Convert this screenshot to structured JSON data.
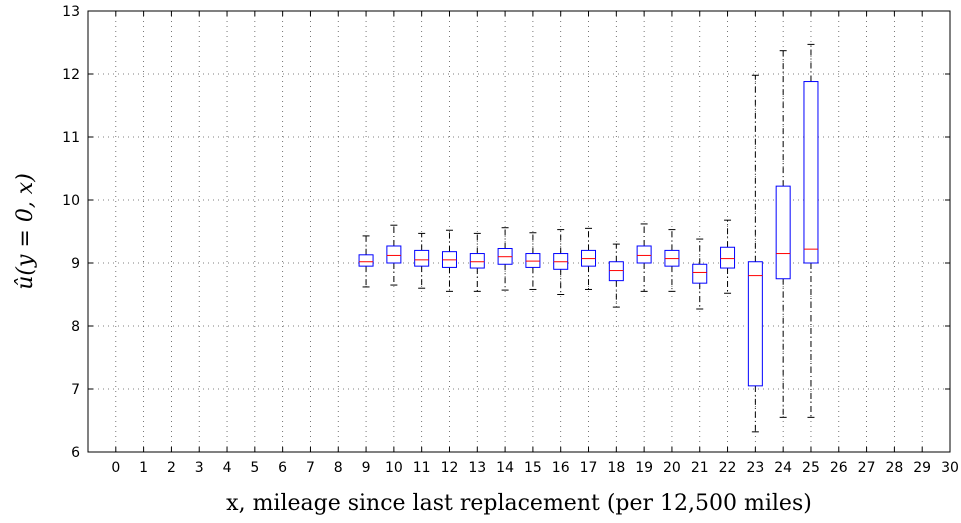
{
  "chart_data": {
    "type": "boxplot",
    "title": "",
    "xlabel": "x, mileage since last replacement (per 12,500 miles)",
    "ylabel": "û(y = 0, x)",
    "xlim": [
      -1,
      30
    ],
    "ylim": [
      6,
      13
    ],
    "xticks": [
      0,
      1,
      2,
      3,
      4,
      5,
      6,
      7,
      8,
      9,
      10,
      11,
      12,
      13,
      14,
      15,
      16,
      17,
      18,
      19,
      20,
      21,
      22,
      23,
      24,
      25,
      26,
      27,
      28,
      29,
      30
    ],
    "yticks": [
      6,
      7,
      8,
      9,
      10,
      11,
      12,
      13
    ],
    "grid": true,
    "box_color": "#0000ff",
    "median_color": "#ff0000",
    "whisker_color": "#000000",
    "boxes": [
      {
        "x": 9,
        "whisker_low": 8.62,
        "q1": 8.95,
        "median": 9.02,
        "q3": 9.13,
        "whisker_high": 9.43
      },
      {
        "x": 10,
        "whisker_low": 8.65,
        "q1": 9.0,
        "median": 9.12,
        "q3": 9.27,
        "whisker_high": 9.6
      },
      {
        "x": 11,
        "whisker_low": 8.6,
        "q1": 8.95,
        "median": 9.05,
        "q3": 9.2,
        "whisker_high": 9.47
      },
      {
        "x": 12,
        "whisker_low": 8.55,
        "q1": 8.93,
        "median": 9.05,
        "q3": 9.18,
        "whisker_high": 9.52
      },
      {
        "x": 13,
        "whisker_low": 8.55,
        "q1": 8.92,
        "median": 9.02,
        "q3": 9.15,
        "whisker_high": 9.47
      },
      {
        "x": 14,
        "whisker_low": 8.57,
        "q1": 8.98,
        "median": 9.1,
        "q3": 9.23,
        "whisker_high": 9.56
      },
      {
        "x": 15,
        "whisker_low": 8.58,
        "q1": 8.93,
        "median": 9.03,
        "q3": 9.15,
        "whisker_high": 9.48
      },
      {
        "x": 16,
        "whisker_low": 8.5,
        "q1": 8.9,
        "median": 9.02,
        "q3": 9.15,
        "whisker_high": 9.53
      },
      {
        "x": 17,
        "whisker_low": 8.58,
        "q1": 8.95,
        "median": 9.07,
        "q3": 9.2,
        "whisker_high": 9.55
      },
      {
        "x": 18,
        "whisker_low": 8.3,
        "q1": 8.72,
        "median": 8.88,
        "q3": 9.02,
        "whisker_high": 9.3
      },
      {
        "x": 19,
        "whisker_low": 8.55,
        "q1": 9.0,
        "median": 9.12,
        "q3": 9.27,
        "whisker_high": 9.62
      },
      {
        "x": 20,
        "whisker_low": 8.55,
        "q1": 8.95,
        "median": 9.07,
        "q3": 9.2,
        "whisker_high": 9.53
      },
      {
        "x": 21,
        "whisker_low": 8.27,
        "q1": 8.68,
        "median": 8.85,
        "q3": 8.98,
        "whisker_high": 9.38
      },
      {
        "x": 22,
        "whisker_low": 8.52,
        "q1": 8.92,
        "median": 9.07,
        "q3": 9.25,
        "whisker_high": 9.68
      },
      {
        "x": 23,
        "whisker_low": 6.32,
        "q1": 7.05,
        "median": 8.8,
        "q3": 9.02,
        "whisker_high": 11.98
      },
      {
        "x": 24,
        "whisker_low": 6.55,
        "q1": 8.75,
        "median": 9.15,
        "q3": 10.22,
        "whisker_high": 12.37
      },
      {
        "x": 25,
        "whisker_low": 6.55,
        "q1": 9.0,
        "median": 9.22,
        "q3": 11.88,
        "whisker_high": 12.47
      }
    ]
  }
}
